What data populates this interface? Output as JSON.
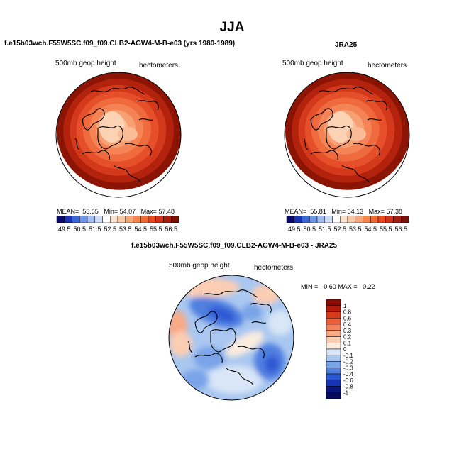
{
  "figure": {
    "title": "JJA"
  },
  "panels": [
    {
      "title": "f.e15b03wch.F55W5SC.f09_f09.CLB2-AGW4-M-B-e03 (yrs 1980-1989)",
      "variable": "500mb geop height",
      "units": "hectometers",
      "stats": {
        "mean_label": "MEAN=",
        "mean": "55.55",
        "min_label": "Min=",
        "min": "54.07",
        "max_label": "Max=",
        "max": "57.48"
      },
      "colorbar": {
        "labels": [
          "49.5",
          "50.5",
          "51.5",
          "52.5",
          "53.5",
          "54.5",
          "55.5",
          "56.5"
        ],
        "colors": [
          "#08086b",
          "#1933b3",
          "#3b66d6",
          "#6f95e6",
          "#a3bdf0",
          "#cfdcf7",
          "#ffffff",
          "#fbe2d0",
          "#f9c8a6",
          "#f7a87a",
          "#f5864f",
          "#f26a33",
          "#e84a1f",
          "#d4311b",
          "#a3200f",
          "#7a1205"
        ]
      },
      "map": {
        "field": "geopotential height (warm palette)",
        "ring_colors": [
          "#8b1405",
          "#b3220c",
          "#d5391c",
          "#e5502a",
          "#ef6a3c",
          "#f48456",
          "#f7a074",
          "#f9bc97"
        ]
      }
    },
    {
      "title": "JRA25",
      "variable": "500mb geop height",
      "units": "hectometers",
      "stats": {
        "mean_label": "MEAN=",
        "mean": "55.81",
        "min_label": "Min=",
        "min": "54.13",
        "max_label": "Max=",
        "max": "57.38"
      },
      "colorbar": {
        "labels": [
          "49.5",
          "50.5",
          "51.5",
          "52.5",
          "53.5",
          "54.5",
          "55.5",
          "56.5"
        ],
        "colors": [
          "#08086b",
          "#1933b3",
          "#3b66d6",
          "#6f95e6",
          "#a3bdf0",
          "#cfdcf7",
          "#ffffff",
          "#fbe2d0",
          "#f9c8a6",
          "#f7a87a",
          "#f5864f",
          "#f26a33",
          "#e84a1f",
          "#d4311b",
          "#a3200f",
          "#7a1205"
        ]
      },
      "map": {
        "field": "geopotential height (warm palette)",
        "ring_colors": [
          "#8b1405",
          "#b3220c",
          "#d5391c",
          "#e5502a",
          "#ef6a3c",
          "#f48456",
          "#f7a074",
          "#f9bc97"
        ]
      }
    },
    {
      "title": "f.e15b03wch.F55W5SC.f09_f09.CLB2-AGW4-M-B-e03 - JRA25",
      "variable": "500mb geop height",
      "units": "hectometers",
      "stats": {
        "min_label": "MIN =",
        "min": "-0.60",
        "max_label": "MAX =",
        "max": "0.22"
      },
      "colorbar": {
        "labels": [
          "1",
          "0.8",
          "0.6",
          "0.4",
          "0.3",
          "0.2",
          "0.1",
          "0",
          "-0.1",
          "-0.2",
          "-0.3",
          "-0.4",
          "-0.6",
          "-0.8",
          "-1"
        ],
        "colors": [
          "#8b0d05",
          "#b51a0a",
          "#d93a1a",
          "#ee5e3b",
          "#f4845f",
          "#f8a986",
          "#fbcdb3",
          "#faecdf",
          "#d8e6f7",
          "#a9c7f0",
          "#7aa4e8",
          "#4f7fe0",
          "#2d58d4",
          "#1634b3",
          "#0a1580",
          "#050a5e"
        ]
      },
      "map": {
        "field": "geopotential height difference"
      }
    }
  ]
}
